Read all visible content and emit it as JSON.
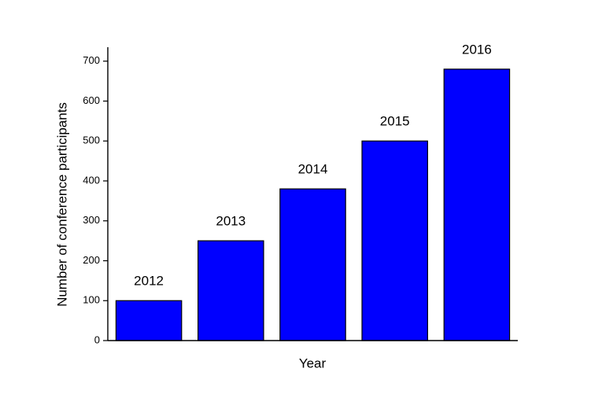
{
  "chart_data": {
    "type": "bar",
    "x_label": "Year",
    "y_label": "Number of conference participants",
    "categories": [
      "2012",
      "2013",
      "2014",
      "2015",
      "2016"
    ],
    "values": [
      100,
      250,
      380,
      500,
      680
    ],
    "color": "#0000ff",
    "ylim": [
      0,
      735
    ],
    "yticks": [
      0,
      100,
      200,
      300,
      400,
      500,
      600,
      700
    ]
  }
}
